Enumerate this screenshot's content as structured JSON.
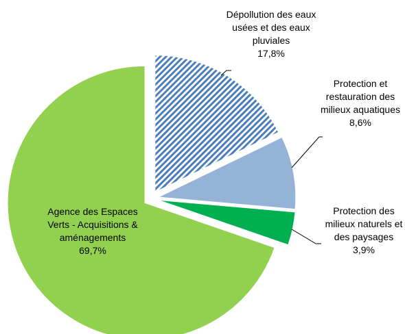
{
  "chart_data": {
    "type": "pie",
    "categories": [
      "Dépollution des eaux usées et des eaux pluviales",
      "Protection et restauration des milieux aquatiques",
      "Protection des milieux naturels et des paysages",
      "Agence des Espaces Verts - Acquisitions & aménagements"
    ],
    "values": [
      17.8,
      8.6,
      3.9,
      69.7
    ],
    "value_labels": [
      "17,8%",
      "8,6%",
      "3,9%",
      "69,7%"
    ],
    "colors": [
      "#4a7ebb",
      "#95b3d7",
      "#00b050",
      "#92d050"
    ]
  }
}
